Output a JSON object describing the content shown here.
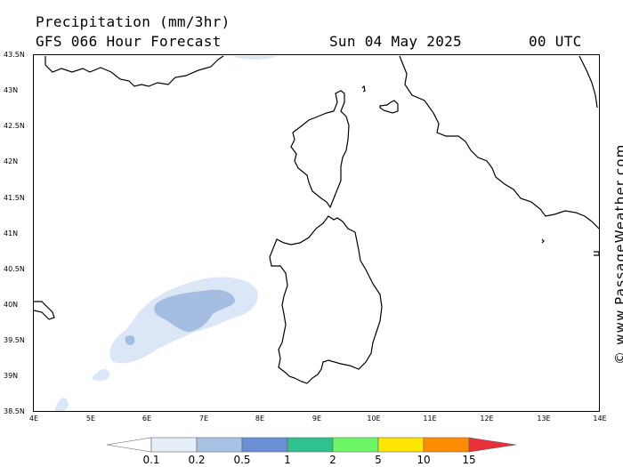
{
  "header": {
    "title": "Precipitation (mm/3hr)",
    "subtitle": "GFS 066 Hour Forecast",
    "date": "Sun 04 May 2025",
    "time": "00 UTC"
  },
  "axes": {
    "lat_labels": [
      "43.5N",
      "43N",
      "42.5N",
      "42N",
      "41.5N",
      "41N",
      "40.5N",
      "40N",
      "39.5N",
      "39N",
      "38.5N"
    ],
    "lon_labels": [
      "4E",
      "5E",
      "6E",
      "7E",
      "8E",
      "9E",
      "10E",
      "11E",
      "12E",
      "13E",
      "14E"
    ]
  },
  "credit": "© www.PassageWeather.com",
  "legend": {
    "labels": [
      "0.1",
      "0.2",
      "0.5",
      "1",
      "2",
      "5",
      "10",
      "15"
    ],
    "colors": [
      "#ffffff",
      "#e6eef9",
      "#a9c2e3",
      "#6a8fd4",
      "#2fc28f",
      "#6cf565",
      "#ffe600",
      "#ff8b00",
      "#e8303a"
    ]
  },
  "colors": {
    "light_precip": "#dbe6f6",
    "mid_precip": "#a4bde0",
    "coastline": "#000000"
  }
}
